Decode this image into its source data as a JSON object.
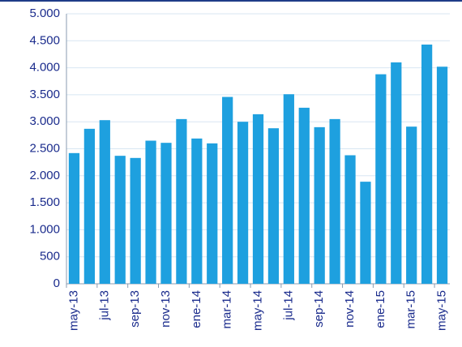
{
  "chart_data": {
    "type": "bar",
    "categories": [
      "may-13",
      null,
      "jul-13",
      null,
      "sep-13",
      null,
      "nov-13",
      null,
      "ene-14",
      null,
      "mar-14",
      null,
      "may-14",
      null,
      "jul-14",
      null,
      "sep-14",
      null,
      "nov-14",
      null,
      "ene-15",
      null,
      "mar-15",
      null,
      "may-15"
    ],
    "values": [
      2420,
      2870,
      3030,
      2370,
      2330,
      2650,
      2610,
      3050,
      2690,
      2600,
      3460,
      3000,
      3140,
      2880,
      3510,
      3260,
      2900,
      3050,
      2380,
      1890,
      3880,
      4100,
      2910,
      4430,
      4020
    ],
    "color": "#1ea0df",
    "ylim": [
      0,
      5000
    ],
    "yticks": [
      0,
      500,
      {
        "value": 1000,
        "label": "1.000"
      },
      {
        "value": 1500,
        "label": "1.500"
      },
      {
        "value": 2000,
        "label": "2.000"
      },
      {
        "value": 2500,
        "label": "2.500"
      },
      {
        "value": 3000,
        "label": "3.000"
      },
      {
        "value": 3500,
        "label": "3.500"
      },
      {
        "value": 4000,
        "label": "4.000"
      },
      {
        "value": 4500,
        "label": "4.500"
      },
      {
        "value": 5000,
        "label": "5.000"
      }
    ],
    "grid": true
  }
}
